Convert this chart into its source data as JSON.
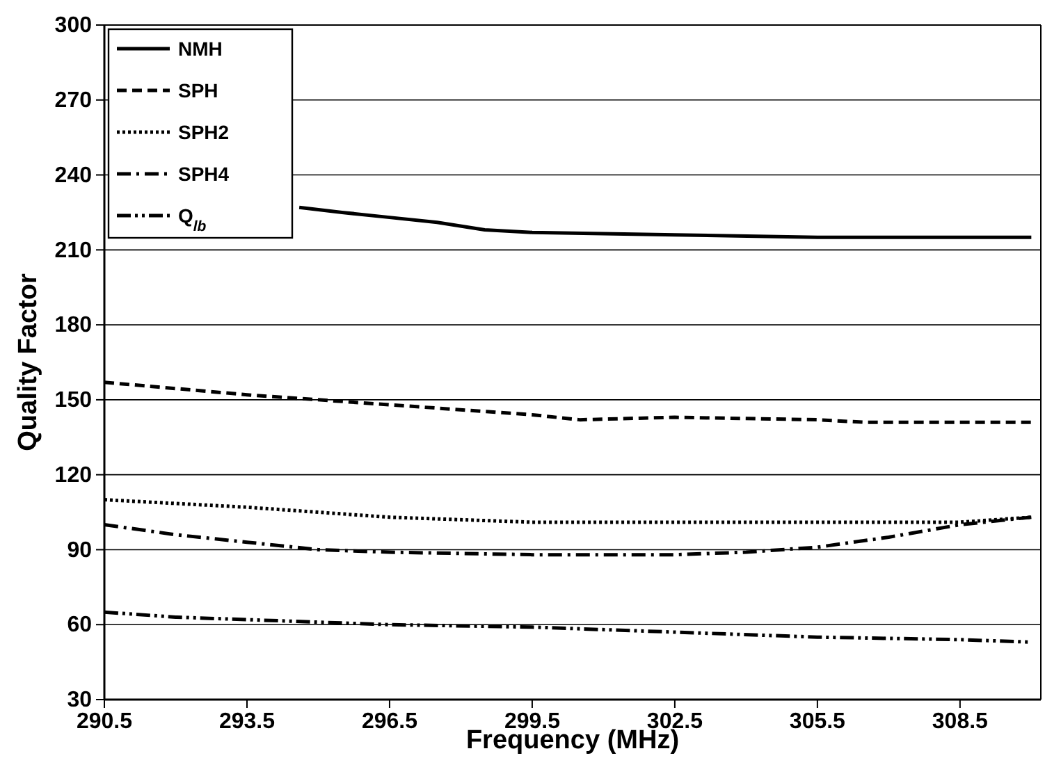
{
  "chart_data": {
    "type": "line",
    "xlabel": "Frequency (MHz)",
    "ylabel": "Quality Factor",
    "xlim": [
      290.5,
      310.2
    ],
    "xticks": [
      290.5,
      293.5,
      296.5,
      299.5,
      302.5,
      305.5,
      308.5
    ],
    "ylim": [
      30,
      300
    ],
    "yticks": [
      30,
      60,
      90,
      120,
      150,
      180,
      210,
      240,
      270,
      300
    ],
    "grid": "y",
    "legend": "top left",
    "series": [
      {
        "name": "NMH",
        "color": "#000000",
        "line_style": "solid",
        "x": [
          294.6,
          295.5,
          296.5,
          297.5,
          298.5,
          299.5,
          302.5,
          305.5,
          310
        ],
        "values": [
          227,
          225,
          223,
          221,
          218,
          217,
          216,
          215,
          215
        ]
      },
      {
        "name": "SPH",
        "color": "#000000",
        "line_style": "dashed",
        "x": [
          290.5,
          293.5,
          296.5,
          299.5,
          300.5,
          302.5,
          305.5,
          306.5,
          310
        ],
        "values": [
          157,
          152,
          148,
          144,
          142,
          143,
          142,
          141,
          141
        ]
      },
      {
        "name": "SPH2",
        "color": "#000000",
        "line_style": "dotted",
        "x": [
          290.5,
          293.5,
          296.5,
          299.5,
          302.5,
          305.5,
          308.5,
          310
        ],
        "values": [
          110,
          107,
          103,
          101,
          101,
          101,
          101,
          103
        ]
      },
      {
        "name": "SPH4",
        "color": "#000000",
        "line_style": "dashdot",
        "x": [
          290.5,
          292,
          293.5,
          295,
          296.5,
          299.5,
          302.5,
          304,
          305.5,
          307,
          308.5,
          310
        ],
        "values": [
          100,
          96,
          93,
          90,
          89,
          88,
          88,
          89,
          91,
          95,
          100,
          103
        ]
      },
      {
        "name": "Q$_{lb}$",
        "color": "#000000",
        "line_style": "dashdotdot",
        "x": [
          290.5,
          292,
          293.5,
          296.5,
          299.5,
          302.5,
          305.5,
          308.5,
          310
        ],
        "values": [
          65,
          63,
          62,
          60,
          59,
          57,
          55,
          54,
          53
        ]
      }
    ]
  }
}
